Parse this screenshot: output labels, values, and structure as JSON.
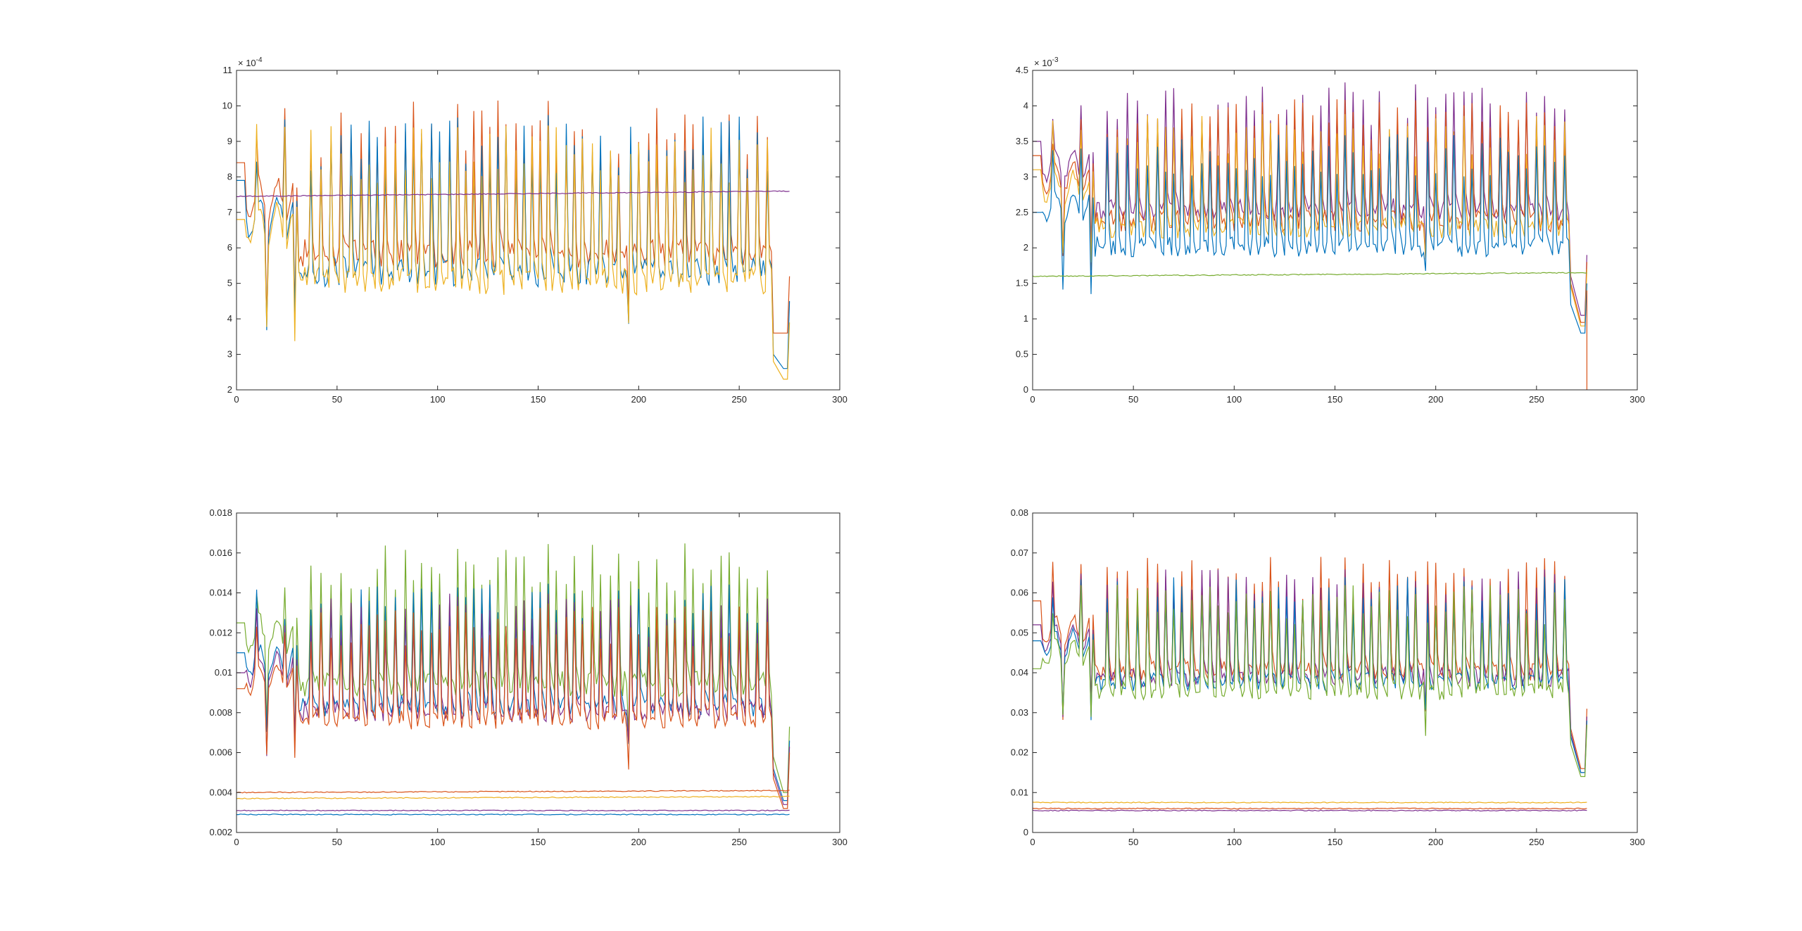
{
  "figure": {
    "background": "#ffffff",
    "axis_color": "#262626"
  },
  "colors": {
    "blue": "#0072BD",
    "orange": "#D95319",
    "yellow": "#EDB120",
    "purple": "#7E2F8E",
    "green": "#77AC30"
  },
  "chart_data": [
    {
      "type": "line",
      "title": "",
      "xlabel": "",
      "ylabel": "",
      "xlim": [
        0,
        300
      ],
      "ylim": [
        2,
        11
      ],
      "xticks": [
        "0",
        "50",
        "100",
        "150",
        "200",
        "250",
        "300"
      ],
      "yticks": [
        "2",
        "3",
        "4",
        "5",
        "6",
        "7",
        "8",
        "9",
        "10",
        "11"
      ],
      "exponent": "× 10^-4",
      "exponent_base": "× 10",
      "exponent_power": "-4",
      "grid": false,
      "series": [
        {
          "color": "orange",
          "peak": 10.2,
          "low": 3.6,
          "start": 8.4,
          "end_min": 3.6,
          "end_val": 5.2
        },
        {
          "color": "blue",
          "peak": 9.8,
          "low": 3.0,
          "start": 7.9,
          "end_min": 2.6,
          "end_val": 4.5
        },
        {
          "color": "yellow",
          "peak": 9.5,
          "low": 2.8,
          "start": 6.8,
          "end_min": 2.3,
          "end_val": 3.9
        }
      ],
      "flat_series": [
        {
          "color": "purple",
          "from": 7.45,
          "to": 7.6,
          "end_val": 7.5
        }
      ]
    },
    {
      "type": "line",
      "title": "",
      "xlabel": "",
      "ylabel": "",
      "xlim": [
        0,
        300
      ],
      "ylim": [
        0,
        4.5
      ],
      "xticks": [
        "0",
        "50",
        "100",
        "150",
        "200",
        "250",
        "300"
      ],
      "yticks": [
        "0",
        "0.5",
        "1",
        "1.5",
        "2",
        "2.5",
        "3",
        "3.5",
        "4",
        "4.5"
      ],
      "exponent": "× 10^-3",
      "exponent_base": "× 10",
      "exponent_power": "-3",
      "grid": false,
      "series": [
        {
          "color": "purple",
          "peak": 4.35,
          "low": 1.6,
          "start": 3.5,
          "end_min": 1.05,
          "end_val": 1.9
        },
        {
          "color": "orange",
          "peak": 4.1,
          "low": 1.5,
          "start": 3.3,
          "end_min": 0.95,
          "end_val": 1.8
        },
        {
          "color": "yellow",
          "peak": 3.9,
          "low": 1.45,
          "start": 3.1,
          "end_min": 0.9,
          "end_val": 1.7
        },
        {
          "color": "blue",
          "peak": 3.6,
          "low": 1.2,
          "start": 2.5,
          "end_min": 0.8,
          "end_val": 1.5
        }
      ],
      "flat_series": [
        {
          "color": "green",
          "from": 1.6,
          "to": 1.65,
          "end_val": 1.65
        }
      ],
      "drop_line": {
        "color": "orange",
        "x": 275,
        "from": 1.4,
        "to": 0.0
      }
    },
    {
      "type": "line",
      "title": "",
      "xlabel": "",
      "ylabel": "",
      "xlim": [
        0,
        300
      ],
      "ylim": [
        0.002,
        0.018
      ],
      "xticks": [
        "0",
        "50",
        "100",
        "150",
        "200",
        "250",
        "300"
      ],
      "yticks": [
        "0.002",
        "0.004",
        "0.006",
        "0.008",
        "0.01",
        "0.012",
        "0.014",
        "0.016",
        "0.018"
      ],
      "grid": false,
      "series": [
        {
          "color": "green",
          "peak": 0.0165,
          "low": 0.0058,
          "start": 0.0125,
          "end_min": 0.004,
          "end_val": 0.0073
        },
        {
          "color": "blue",
          "peak": 0.0145,
          "low": 0.0052,
          "start": 0.011,
          "end_min": 0.0036,
          "end_val": 0.0066
        },
        {
          "color": "purple",
          "peak": 0.014,
          "low": 0.005,
          "start": 0.01,
          "end_min": 0.0034,
          "end_val": 0.0063
        },
        {
          "color": "orange",
          "peak": 0.0135,
          "low": 0.0047,
          "start": 0.0092,
          "end_min": 0.0032,
          "end_val": 0.006
        }
      ],
      "flat_series": [
        {
          "color": "orange",
          "from": 0.004,
          "to": 0.0041,
          "end_val": 0.0041
        },
        {
          "color": "yellow",
          "from": 0.0037,
          "to": 0.0038,
          "end_val": 0.0038
        },
        {
          "color": "purple",
          "from": 0.0031,
          "to": 0.0031,
          "end_val": 0.0031
        },
        {
          "color": "blue",
          "from": 0.0029,
          "to": 0.0029,
          "end_val": 0.0029
        }
      ]
    },
    {
      "type": "line",
      "title": "",
      "xlabel": "",
      "ylabel": "",
      "xlim": [
        0,
        300
      ],
      "ylim": [
        0,
        0.08
      ],
      "xticks": [
        "0",
        "50",
        "100",
        "150",
        "200",
        "250",
        "300"
      ],
      "yticks": [
        "0",
        "0.01",
        "0.02",
        "0.03",
        "0.04",
        "0.05",
        "0.06",
        "0.07",
        "0.08"
      ],
      "grid": false,
      "series": [
        {
          "color": "orange",
          "peak": 0.069,
          "low": 0.026,
          "start": 0.058,
          "end_min": 0.016,
          "end_val": 0.031
        },
        {
          "color": "purple",
          "peak": 0.066,
          "low": 0.025,
          "start": 0.052,
          "end_min": 0.015,
          "end_val": 0.029
        },
        {
          "color": "blue",
          "peak": 0.064,
          "low": 0.024,
          "start": 0.048,
          "end_min": 0.015,
          "end_val": 0.028
        },
        {
          "color": "green",
          "peak": 0.062,
          "low": 0.022,
          "start": 0.041,
          "end_min": 0.014,
          "end_val": 0.027
        }
      ],
      "flat_series": [
        {
          "color": "yellow",
          "from": 0.0075,
          "to": 0.0075,
          "end_val": 0.0075
        },
        {
          "color": "orange",
          "from": 0.006,
          "to": 0.006,
          "end_val": 0.006
        },
        {
          "color": "purple",
          "from": 0.0055,
          "to": 0.0055,
          "end_val": 0.0055
        }
      ]
    }
  ]
}
